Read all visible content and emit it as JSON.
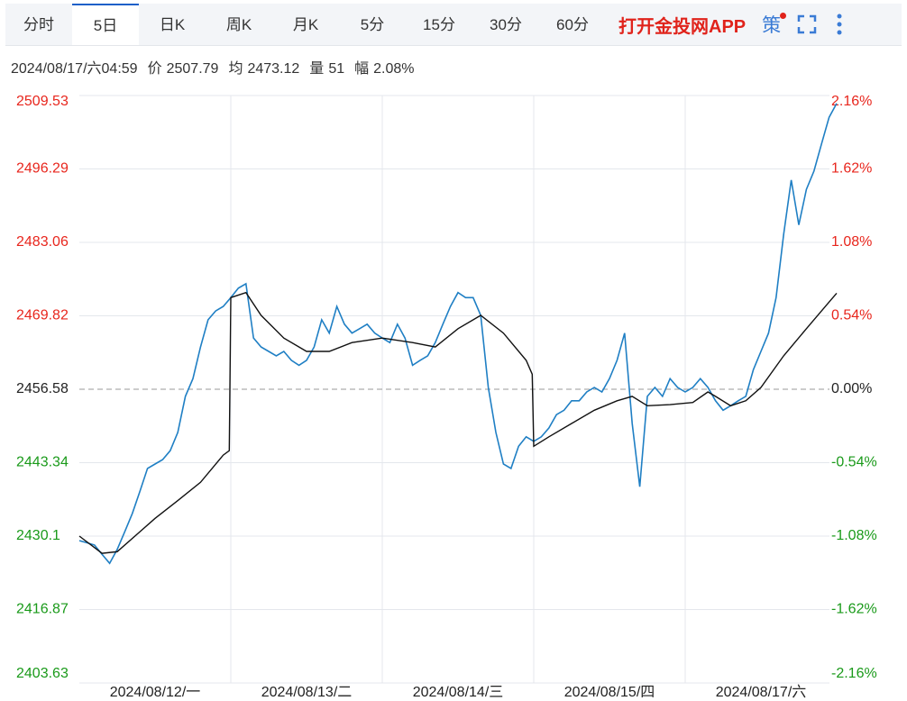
{
  "toolbar": {
    "tabs": [
      "分时",
      "5日",
      "日K",
      "周K",
      "月K",
      "5分",
      "15分",
      "30分",
      "60分"
    ],
    "active": 1,
    "app_link": "打开金投网APP",
    "strategy": "策"
  },
  "info": {
    "time": "2024/08/17/六04:59",
    "price_label": "价",
    "price": 2507.79,
    "avg_label": "均",
    "avg": 2473.12,
    "volume_label": "量",
    "volume": 51,
    "change_label": "幅",
    "change": "2.08%"
  },
  "chart_data": {
    "type": "line",
    "ylim": [
      2403.63,
      2509.53
    ],
    "yticks": [
      2509.53,
      2496.29,
      2483.06,
      2469.82,
      2456.58,
      2443.34,
      2430.1,
      2416.87,
      2403.63
    ],
    "baseline": 2456.58,
    "y2lim": [
      -2.16,
      2.16
    ],
    "y2ticks": [
      {
        "value": 2.16,
        "label": "2.16%"
      },
      {
        "value": 1.62,
        "label": "1.62%"
      },
      {
        "value": 1.08,
        "label": "1.08%"
      },
      {
        "value": 0.54,
        "label": "0.54%"
      },
      {
        "value": 0,
        "label": "0.00%"
      },
      {
        "value": -0.54,
        "label": "-0.54%"
      },
      {
        "value": -1.08,
        "label": "-1.08%"
      },
      {
        "value": -1.62,
        "label": "-1.62%"
      },
      {
        "value": -2.16,
        "label": "-2.16%"
      }
    ],
    "xlim": [
      0,
      100
    ],
    "xticks": [
      {
        "value": 10,
        "label": "2024/08/12/一"
      },
      {
        "value": 30,
        "label": "2024/08/13/二"
      },
      {
        "value": 50,
        "label": "2024/08/14/三"
      },
      {
        "value": 70,
        "label": "2024/08/15/四"
      },
      {
        "value": 90,
        "label": "2024/08/17/六"
      }
    ],
    "grid": true,
    "up_color": "#e8261d",
    "down_color": "#1a9a1a",
    "flat_color": "#222222",
    "series": [
      {
        "color": "#1f7fc4",
        "x": [
          0,
          1,
          2,
          3,
          4,
          5,
          6,
          7,
          8,
          9,
          10,
          11,
          12,
          13,
          14,
          15,
          16,
          17,
          18,
          19,
          20,
          21,
          22,
          23,
          24,
          25,
          26,
          27,
          28,
          29,
          30,
          31,
          32,
          33,
          34,
          35,
          36,
          37,
          38,
          39,
          40,
          41,
          42,
          43,
          44,
          45,
          46,
          47,
          48,
          49,
          50,
          51,
          52,
          53,
          54,
          55,
          56,
          57,
          58,
          59,
          60,
          61,
          62,
          63,
          64,
          65,
          66,
          67,
          68,
          69,
          70,
          71,
          72,
          73,
          74,
          75,
          76,
          77,
          78,
          79,
          80,
          81,
          82,
          83,
          84,
          85,
          86,
          87,
          88,
          89,
          90,
          91,
          92,
          93,
          94,
          95,
          96,
          97,
          98,
          99,
          100
        ],
        "values": [
          2429.3,
          2428.9,
          2428.5,
          2426.8,
          2425.2,
          2427.7,
          2430.9,
          2434.2,
          2438.2,
          2442.3,
          2443.1,
          2443.9,
          2445.5,
          2448.8,
          2455.3,
          2458.5,
          2464.2,
          2469.1,
          2470.7,
          2471.5,
          2473.1,
          2474.8,
          2475.6,
          2465.8,
          2464.2,
          2463.4,
          2462.6,
          2463.4,
          2461.8,
          2460.9,
          2461.8,
          2464.2,
          2469.1,
          2466.7,
          2471.5,
          2468.3,
          2466.7,
          2467.5,
          2468.3,
          2466.7,
          2465.8,
          2465.0,
          2468.3,
          2465.8,
          2460.9,
          2461.8,
          2462.6,
          2465.0,
          2468.3,
          2471.5,
          2474.0,
          2473.1,
          2473.1,
          2469.9,
          2456.9,
          2448.8,
          2443.1,
          2442.3,
          2446.3,
          2448.0,
          2447.2,
          2448.0,
          2449.6,
          2452.0,
          2452.8,
          2454.5,
          2454.5,
          2456.1,
          2456.9,
          2456.1,
          2458.5,
          2461.8,
          2466.7,
          2450.4,
          2439.0,
          2455.3,
          2456.9,
          2455.3,
          2458.5,
          2456.9,
          2456.1,
          2456.9,
          2458.5,
          2456.9,
          2454.5,
          2452.8,
          2453.6,
          2454.5,
          2455.3,
          2460.1,
          2463.4,
          2466.7,
          2473.1,
          2484.5,
          2494.3,
          2486.2,
          2492.6,
          2495.9,
          2500.8,
          2505.6,
          2508.1
        ]
      },
      {
        "color": "#111111",
        "x": [
          0,
          3,
          5,
          8,
          10,
          13,
          16,
          19,
          19.8,
          20,
          22,
          24,
          27,
          30,
          33,
          36,
          40,
          44,
          47,
          50,
          53,
          56,
          59,
          59.8,
          60,
          62,
          65,
          68,
          71,
          73,
          75,
          78,
          81,
          83,
          84,
          86,
          88,
          90,
          93,
          96,
          99,
          100
        ],
        "values": [
          2430.1,
          2427.0,
          2427.3,
          2430.9,
          2433.3,
          2436.5,
          2439.8,
          2444.7,
          2445.5,
          2473.1,
          2474.0,
          2469.9,
          2465.8,
          2463.4,
          2463.4,
          2465.0,
          2465.8,
          2465.0,
          2464.2,
          2467.5,
          2469.9,
          2466.7,
          2461.8,
          2459.3,
          2446.3,
          2448.0,
          2450.4,
          2452.8,
          2454.5,
          2455.3,
          2453.6,
          2453.8,
          2454.2,
          2456.1,
          2455.3,
          2453.6,
          2454.5,
          2456.9,
          2462.6,
          2467.5,
          2472.3,
          2473.9
        ]
      }
    ]
  }
}
